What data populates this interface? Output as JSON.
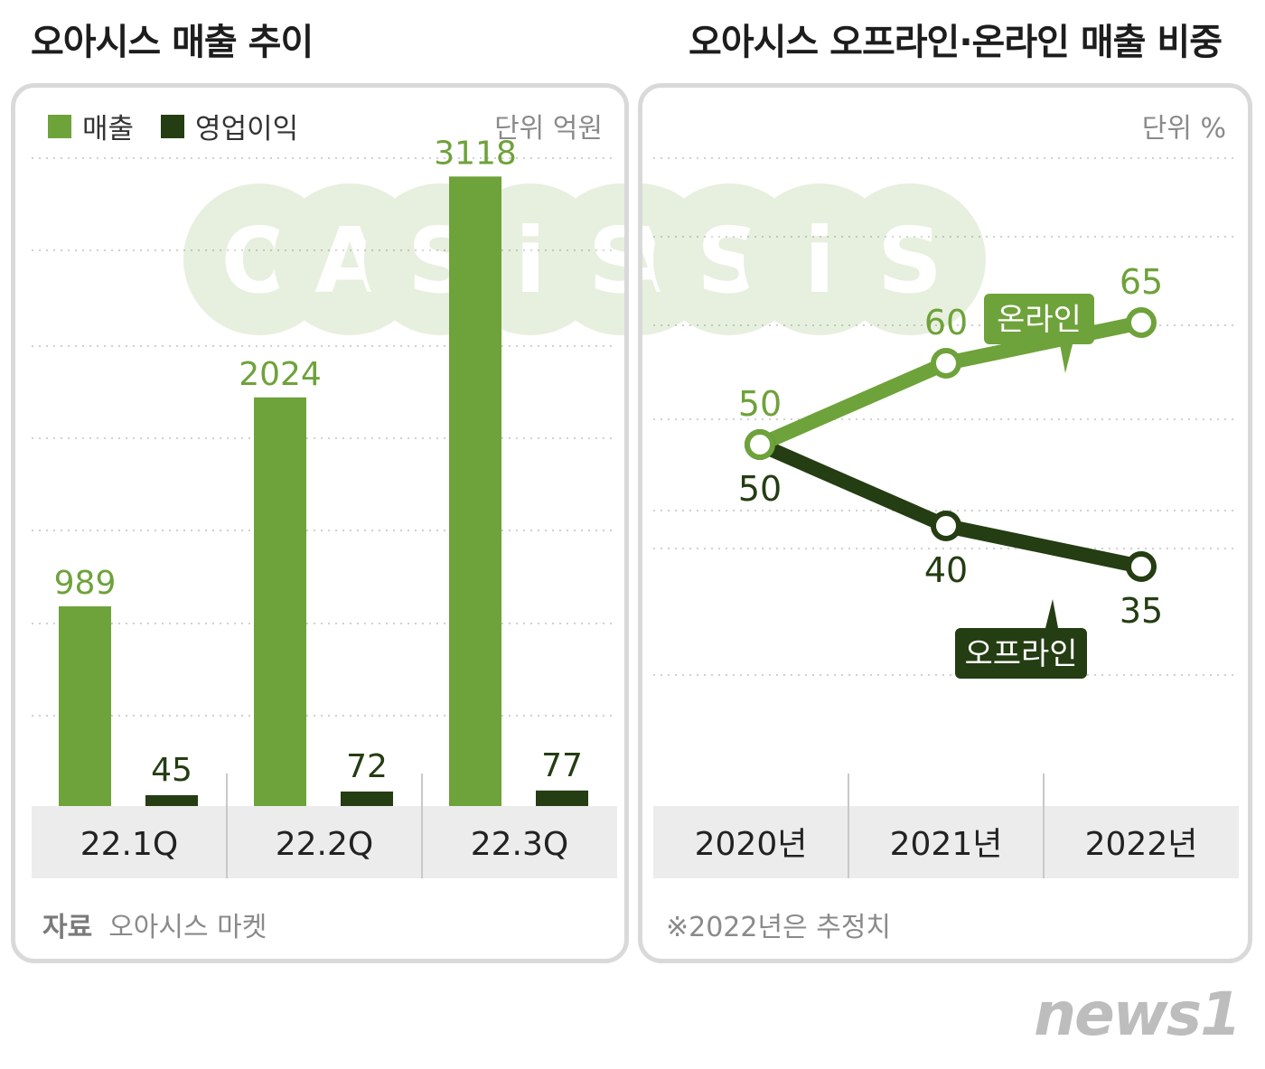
{
  "left_title": "오아시스 매출 추이",
  "right_title": "오아시스 오프라인·온라인 매출 비중",
  "left_unit": "단위  억원",
  "right_unit": "단위  %",
  "source_label": "자료",
  "source_text": "오아시스 마켓",
  "note_text": "※2022년은 추정치",
  "watermark": "OASIS",
  "brand": "news1",
  "colors": {
    "sales": "#6ea23a",
    "operating_profit": "#243d12",
    "online": "#6ea23a",
    "offline": "#243d12",
    "axis_band": "#ececec",
    "grid": "#d0d0d0"
  },
  "chart_data": [
    {
      "type": "bar",
      "categories": [
        "22.1Q",
        "22.2Q",
        "22.3Q"
      ],
      "series": [
        {
          "name": "매출",
          "values": [
            989,
            2024,
            3118
          ]
        },
        {
          "name": "영업이익",
          "values": [
            45,
            72,
            77
          ]
        }
      ],
      "ylim": [
        0,
        3200
      ],
      "grid": true,
      "legend": "top-left"
    },
    {
      "type": "line",
      "categories": [
        "2020년",
        "2021년",
        "2022년"
      ],
      "series": [
        {
          "name": "온라인",
          "values": [
            50,
            60,
            65
          ]
        },
        {
          "name": "오프라인",
          "values": [
            50,
            40,
            35
          ]
        }
      ],
      "ylim": [
        10,
        85
      ],
      "grid": true,
      "legend": "callouts"
    }
  ]
}
